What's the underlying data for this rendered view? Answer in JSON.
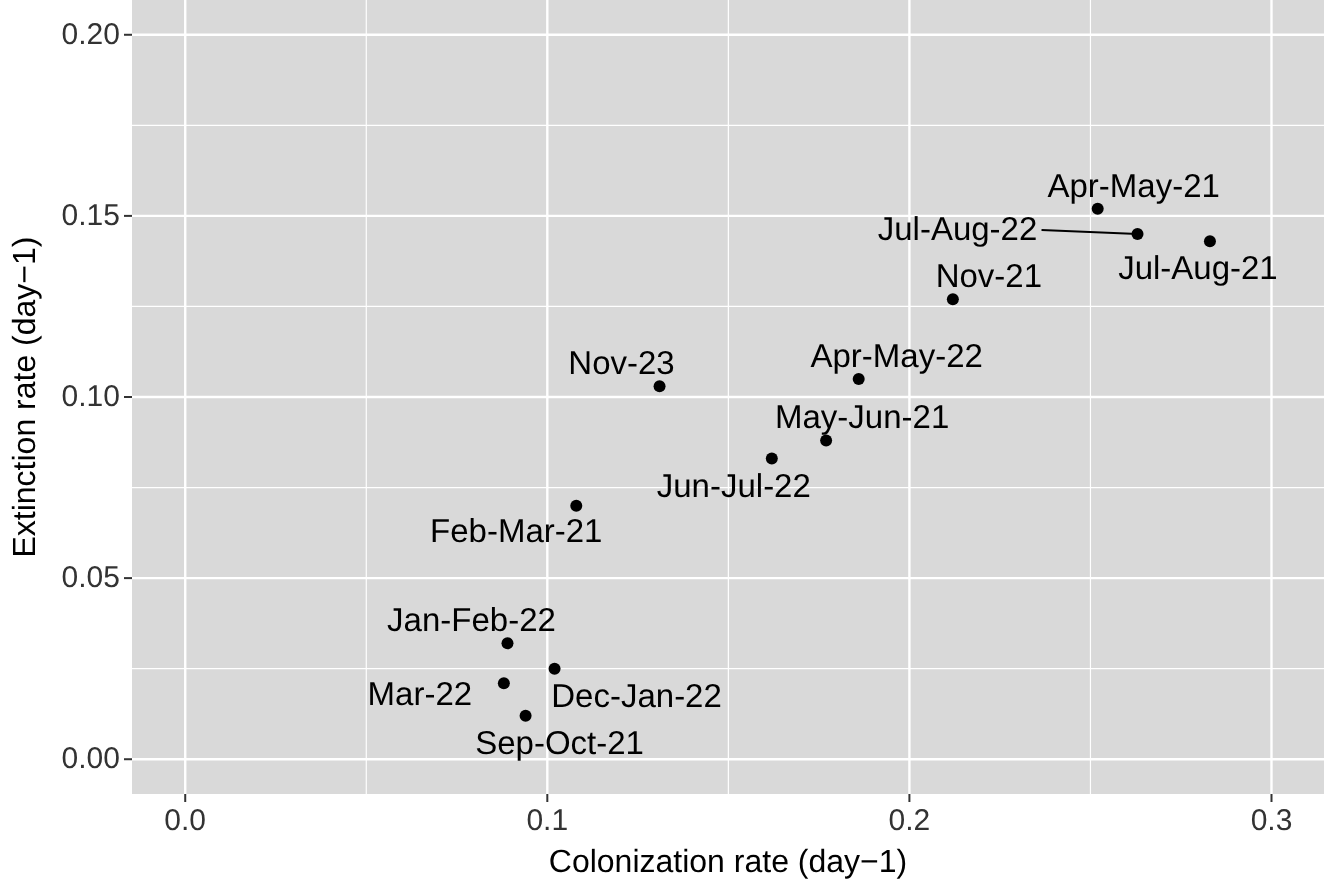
{
  "chart_data": {
    "type": "scatter",
    "xlabel": "Colonization rate (day−1)",
    "ylabel": "Extinction rate (day−1)",
    "x": [
      0.252,
      0.263,
      0.283,
      0.212,
      0.186,
      0.131,
      0.177,
      0.162,
      0.108,
      0.089,
      0.102,
      0.088,
      0.094
    ],
    "values": [
      0.152,
      0.145,
      0.143,
      0.127,
      0.105,
      0.103,
      0.088,
      0.083,
      0.07,
      0.032,
      0.025,
      0.021,
      0.012
    ],
    "value_labels": [
      "Apr-May-21",
      "Jul-Aug-22",
      "Jul-Aug-21",
      "Nov-21",
      "Apr-May-22",
      "Nov-23",
      "May-Jun-21",
      "Jun-Jul-22",
      "Feb-Mar-21",
      "Jan-Feb-22",
      "Dec-Jan-22",
      "Mar-22",
      "Sep-Oct-21"
    ],
    "color": "#000000",
    "marker": "circle",
    "grid": true,
    "xlim": [
      -0.0147,
      0.3145
    ],
    "xticks": [
      {
        "value": 0,
        "label": "0.0"
      },
      {
        "value": 0.1,
        "label": "0.1"
      },
      {
        "value": 0.2,
        "label": "0.2"
      },
      {
        "value": 0.3,
        "label": "0.3"
      }
    ],
    "ylim": [
      -0.0096,
      0.2096
    ],
    "yticks": [
      {
        "value": 0,
        "label": "0.00"
      },
      {
        "value": 0.05,
        "label": "0.05"
      },
      {
        "value": 0.1,
        "label": "0.10"
      },
      {
        "value": 0.15,
        "label": "0.15"
      },
      {
        "value": 0.2,
        "label": "0.20"
      }
    ]
  }
}
